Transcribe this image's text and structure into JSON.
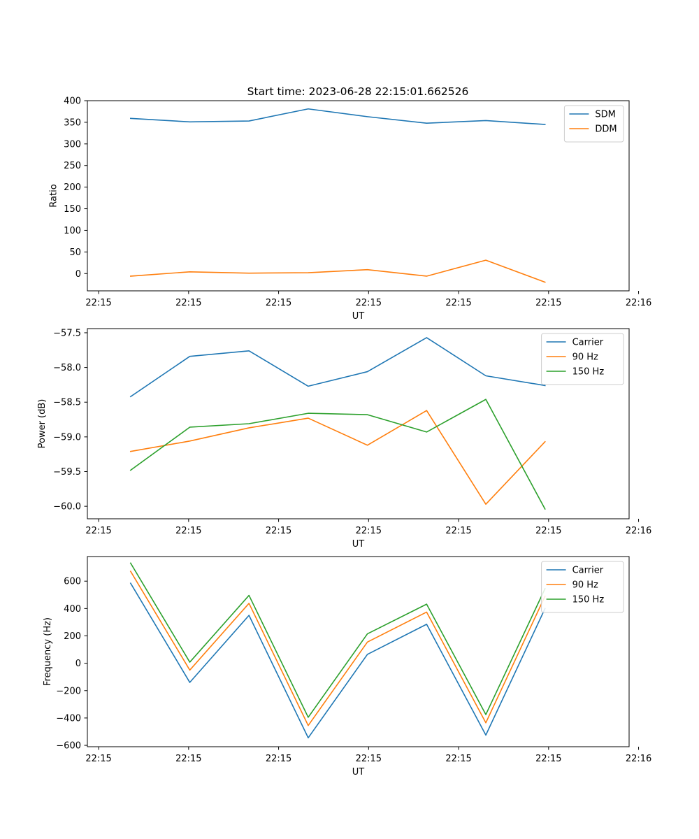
{
  "figure": {
    "title": "Start time: 2023-06-28 22:15:01.662526"
  },
  "chart_data": [
    {
      "type": "line",
      "title": "Start time: 2023-06-28 22:15:01.662526",
      "xlabel": "UT",
      "ylabel": "Ratio",
      "x": [
        1,
        2,
        3,
        4,
        5,
        6,
        7,
        8
      ],
      "xlim": [
        0.27,
        9.42
      ],
      "xticks": [
        0.46,
        1.98,
        3.5,
        5.02,
        6.54,
        8.06,
        9.58
      ],
      "xtick_labels": [
        "22:15",
        "22:15",
        "22:15",
        "22:15",
        "22:15",
        "22:15",
        "22:16"
      ],
      "ylim": [
        -40,
        400
      ],
      "yticks": [
        0,
        50,
        100,
        150,
        200,
        250,
        300,
        350,
        400
      ],
      "ytick_labels": [
        "0",
        "50",
        "100",
        "150",
        "200",
        "250",
        "300",
        "350",
        "400"
      ],
      "legend": "top-right",
      "grid": false,
      "series": [
        {
          "name": "SDM",
          "color": "#1f77b4",
          "values": [
            359,
            351,
            353,
            381,
            363,
            348,
            354,
            345
          ]
        },
        {
          "name": "DDM",
          "color": "#ff7f0e",
          "values": [
            -6,
            4,
            1,
            2,
            9,
            -6,
            31,
            -20
          ]
        }
      ]
    },
    {
      "type": "line",
      "xlabel": "UT",
      "ylabel": "Power (dB)",
      "x": [
        1,
        2,
        3,
        4,
        5,
        6,
        7,
        8
      ],
      "xlim": [
        0.27,
        9.42
      ],
      "xticks": [
        0.46,
        1.98,
        3.5,
        5.02,
        6.54,
        8.06,
        9.58
      ],
      "xtick_labels": [
        "22:15",
        "22:15",
        "22:15",
        "22:15",
        "22:15",
        "22:15",
        "22:16"
      ],
      "ylim": [
        -60.18,
        -57.44
      ],
      "yticks": [
        -60.0,
        -59.5,
        -59.0,
        -58.5,
        -58.0,
        -57.5
      ],
      "ytick_labels": [
        "−60.0",
        "−59.5",
        "−59.0",
        "−58.5",
        "−58.0",
        "−57.5"
      ],
      "legend": "top-right",
      "grid": false,
      "series": [
        {
          "name": "Carrier",
          "color": "#1f77b4",
          "values": [
            -58.42,
            -57.84,
            -57.76,
            -58.27,
            -58.06,
            -57.57,
            -58.12,
            -58.26
          ]
        },
        {
          "name": "90 Hz",
          "color": "#ff7f0e",
          "values": [
            -59.21,
            -59.06,
            -58.87,
            -58.73,
            -59.12,
            -58.62,
            -59.97,
            -59.07
          ]
        },
        {
          "name": "150 Hz",
          "color": "#2ca02c",
          "values": [
            -59.48,
            -58.86,
            -58.81,
            -58.66,
            -58.68,
            -58.93,
            -58.46,
            -60.04
          ]
        }
      ]
    },
    {
      "type": "line",
      "xlabel": "UT",
      "ylabel": "Frequency (Hz)",
      "x": [
        1,
        2,
        3,
        4,
        5,
        6,
        7,
        8
      ],
      "xlim": [
        0.27,
        9.42
      ],
      "xticks": [
        0.46,
        1.98,
        3.5,
        5.02,
        6.54,
        8.06,
        9.58
      ],
      "xtick_labels": [
        "22:15",
        "22:15",
        "22:15",
        "22:15",
        "22:15",
        "22:15",
        "22:16"
      ],
      "ylim": [
        -610,
        780
      ],
      "yticks": [
        -600,
        -400,
        -200,
        0,
        200,
        400,
        600
      ],
      "ytick_labels": [
        "−600",
        "−400",
        "−200",
        "0",
        "200",
        "400",
        "600"
      ],
      "legend": "top-right",
      "grid": false,
      "series": [
        {
          "name": "Carrier",
          "color": "#1f77b4",
          "values": [
            585,
            -140,
            350,
            -545,
            65,
            285,
            -525,
            400
          ]
        },
        {
          "name": "90 Hz",
          "color": "#ff7f0e",
          "values": [
            672,
            -50,
            438,
            -455,
            155,
            374,
            -435,
            490
          ]
        },
        {
          "name": "150 Hz",
          "color": "#2ca02c",
          "values": [
            732,
            8,
            496,
            -395,
            215,
            432,
            -375,
            545
          ]
        }
      ]
    }
  ]
}
